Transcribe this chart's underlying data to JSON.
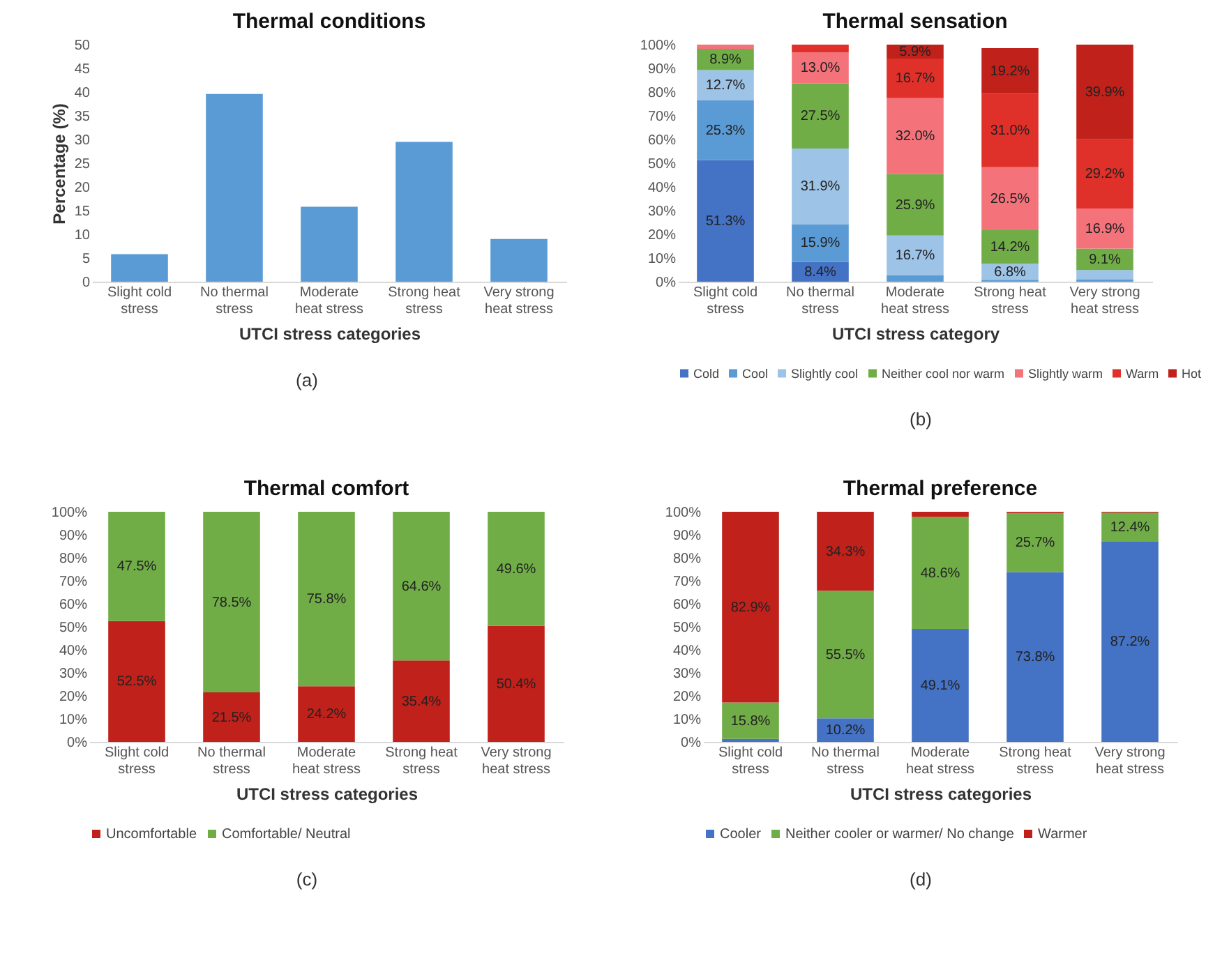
{
  "chart_data": [
    {
      "type": "bar",
      "title": "Thermal conditions",
      "xlabel": "UTCI stress categories",
      "ylabel": "Percentage (%)",
      "categories": [
        "Slight cold stress",
        "No thermal stress",
        "Moderate heat stress",
        "Strong heat stress",
        "Very strong heat stress"
      ],
      "values": [
        5.8,
        39.6,
        15.8,
        29.5,
        9.0
      ],
      "color": "#5b9bd5",
      "ylim": [
        0,
        50
      ],
      "yticks": [
        0,
        5,
        10,
        15,
        20,
        25,
        30,
        35,
        40,
        45,
        50
      ],
      "grid": false,
      "annotations": [
        "(a)"
      ]
    },
    {
      "type": "bar",
      "title": "Thermal sensation",
      "xlabel": "UTCI stress category",
      "stacked": true,
      "legend": "bottom",
      "grid": false,
      "categories": [
        "Slight cold stress",
        "No thermal stress",
        "Moderate heat stress",
        "Strong heat stress",
        "Very strong heat stress"
      ],
      "ylim": [
        0,
        100
      ],
      "yticks": [
        {
          "value": 0,
          "label": "0%"
        },
        {
          "value": 10,
          "label": "10%"
        },
        {
          "value": 20,
          "label": "20%"
        },
        {
          "value": 30,
          "label": "30%"
        },
        {
          "value": 40,
          "label": "40%"
        },
        {
          "value": 50,
          "label": "50%"
        },
        {
          "value": 60,
          "label": "60%"
        },
        {
          "value": 70,
          "label": "70%"
        },
        {
          "value": 80,
          "label": "80%"
        },
        {
          "value": 90,
          "label": "90%"
        },
        {
          "value": 100,
          "label": "100%"
        }
      ],
      "series": [
        {
          "name": "Cold",
          "color": "#4472c4",
          "values": [
            51.3,
            8.4,
            0,
            0,
            0
          ],
          "value_labels": [
            "51.3%",
            "8.4%",
            null,
            null,
            null
          ]
        },
        {
          "name": "Cool",
          "color": "#5b9bd5",
          "values": [
            25.3,
            15.9,
            2.8,
            0.8,
            0.9
          ],
          "value_labels": [
            "25.3%",
            "15.9%",
            null,
            null,
            null
          ]
        },
        {
          "name": "Slightly cool",
          "color": "#9dc3e6",
          "values": [
            12.7,
            31.9,
            16.7,
            6.8,
            4.0
          ],
          "value_labels": [
            "12.7%",
            "31.9%",
            "16.7%",
            "6.8%",
            null
          ]
        },
        {
          "name": "Neither cool nor warm",
          "color": "#70ad47",
          "values": [
            8.9,
            27.5,
            25.9,
            14.2,
            9.1
          ],
          "value_labels": [
            "8.9%",
            "27.5%",
            "25.9%",
            "14.2%",
            "9.1%"
          ]
        },
        {
          "name": "Slightly warm",
          "color": "#f4727a",
          "values": [
            1.8,
            13.0,
            32.0,
            26.5,
            16.9
          ],
          "value_labels": [
            null,
            "13.0%",
            "32.0%",
            "26.5%",
            "16.9%"
          ]
        },
        {
          "name": "Warm",
          "color": "#e0302a",
          "values": [
            0,
            3.3,
            16.7,
            31.0,
            29.2
          ],
          "value_labels": [
            null,
            null,
            "16.7%",
            "31.0%",
            "29.2%"
          ]
        },
        {
          "name": "Hot",
          "color": "#c0211a",
          "values": [
            0,
            0,
            5.9,
            19.2,
            39.9
          ],
          "value_labels": [
            null,
            null,
            "5.9%",
            "19.2%",
            "39.9%"
          ]
        }
      ],
      "annotations": [
        "(b)"
      ]
    },
    {
      "type": "bar",
      "title": "Thermal comfort",
      "xlabel": "UTCI stress categories",
      "stacked": true,
      "legend": "bottom",
      "grid": false,
      "categories": [
        "Slight cold stress",
        "No thermal stress",
        "Moderate heat stress",
        "Strong heat stress",
        "Very strong heat stress"
      ],
      "ylim": [
        0,
        100
      ],
      "yticks": [
        {
          "value": 0,
          "label": "0%"
        },
        {
          "value": 10,
          "label": "10%"
        },
        {
          "value": 20,
          "label": "20%"
        },
        {
          "value": 30,
          "label": "30%"
        },
        {
          "value": 40,
          "label": "40%"
        },
        {
          "value": 50,
          "label": "50%"
        },
        {
          "value": 60,
          "label": "60%"
        },
        {
          "value": 70,
          "label": "70%"
        },
        {
          "value": 80,
          "label": "80%"
        },
        {
          "value": 90,
          "label": "90%"
        },
        {
          "value": 100,
          "label": "100%"
        }
      ],
      "series": [
        {
          "name": "Uncomfortable",
          "color": "#c0211a",
          "values": [
            52.5,
            21.5,
            24.2,
            35.4,
            50.4
          ],
          "value_labels": [
            "52.5%",
            "21.5%",
            "24.2%",
            "35.4%",
            "50.4%"
          ]
        },
        {
          "name": "Comfortable/ Neutral",
          "color": "#70ad47",
          "values": [
            47.5,
            78.5,
            75.8,
            64.6,
            49.6
          ],
          "value_labels": [
            "47.5%",
            "78.5%",
            "75.8%",
            "64.6%",
            "49.6%"
          ]
        }
      ],
      "annotations": [
        "(c)"
      ]
    },
    {
      "type": "bar",
      "title": "Thermal preference",
      "xlabel": "UTCI stress categories",
      "stacked": true,
      "legend": "bottom",
      "grid": false,
      "categories": [
        "Slight cold stress",
        "No thermal stress",
        "Moderate heat stress",
        "Strong heat stress",
        "Very strong heat stress"
      ],
      "ylim": [
        0,
        100
      ],
      "yticks": [
        {
          "value": 0,
          "label": "0%"
        },
        {
          "value": 10,
          "label": "10%"
        },
        {
          "value": 20,
          "label": "20%"
        },
        {
          "value": 30,
          "label": "30%"
        },
        {
          "value": 40,
          "label": "40%"
        },
        {
          "value": 50,
          "label": "50%"
        },
        {
          "value": 60,
          "label": "60%"
        },
        {
          "value": 70,
          "label": "70%"
        },
        {
          "value": 80,
          "label": "80%"
        },
        {
          "value": 90,
          "label": "90%"
        },
        {
          "value": 100,
          "label": "100%"
        }
      ],
      "series": [
        {
          "name": "Cooler",
          "color": "#4472c4",
          "values": [
            1.3,
            10.2,
            49.1,
            73.8,
            87.2
          ],
          "value_labels": [
            null,
            "10.2%",
            "49.1%",
            "73.8%",
            "87.2%"
          ]
        },
        {
          "name": "Neither cooler or warmer/ No change",
          "color": "#70ad47",
          "values": [
            15.8,
            55.5,
            48.6,
            25.7,
            12.4
          ],
          "value_labels": [
            "15.8%",
            "55.5%",
            "48.6%",
            "25.7%",
            "12.4%"
          ]
        },
        {
          "name": "Warmer",
          "color": "#c0211a",
          "values": [
            82.9,
            34.3,
            2.3,
            0.5,
            0.4
          ],
          "value_labels": [
            "82.9%",
            "34.3%",
            null,
            null,
            null
          ]
        }
      ],
      "annotations": [
        "(d)"
      ]
    }
  ]
}
